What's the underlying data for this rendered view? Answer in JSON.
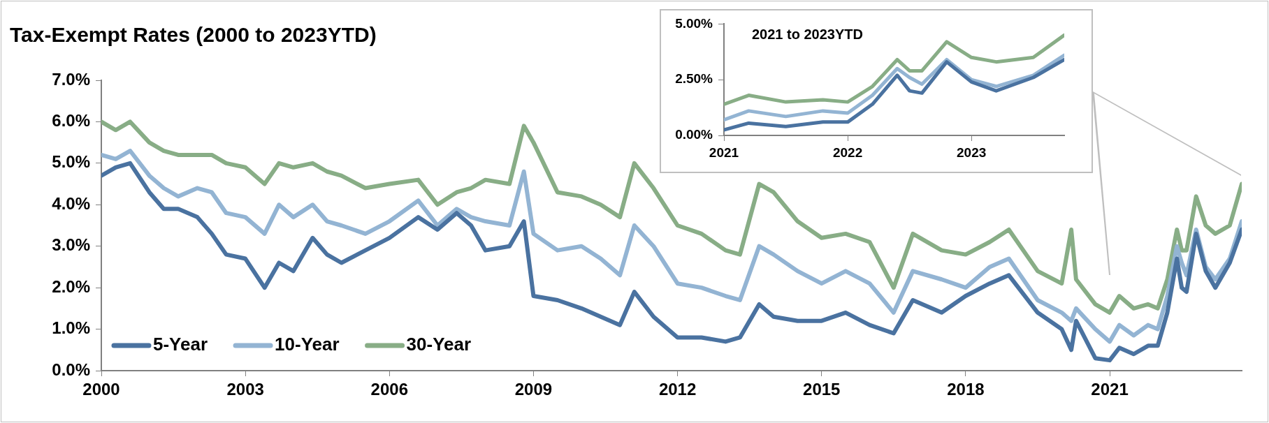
{
  "chart_data": [
    {
      "type": "line",
      "title": "Tax-Exempt Rates (2000 to 2023YTD)",
      "x": [
        2000,
        2000.3,
        2000.6,
        2001,
        2001.3,
        2001.6,
        2002,
        2002.3,
        2002.6,
        2003,
        2003.4,
        2003.7,
        2004,
        2004.4,
        2004.7,
        2005,
        2005.5,
        2006,
        2006.6,
        2007,
        2007.4,
        2007.7,
        2008,
        2008.5,
        2008.8,
        2009,
        2009.5,
        2010,
        2010.4,
        2010.8,
        2011.1,
        2011.5,
        2012,
        2012.5,
        2013,
        2013.3,
        2013.7,
        2014,
        2014.5,
        2015,
        2015.5,
        2016,
        2016.5,
        2016.9,
        2017.5,
        2018,
        2018.5,
        2018.9,
        2019.5,
        2020,
        2020.2,
        2020.3,
        2020.7,
        2021,
        2021.2,
        2021.5,
        2021.8,
        2022,
        2022.2,
        2022.4,
        2022.5,
        2022.6,
        2022.8,
        2023,
        2023.2,
        2023.5,
        2023.75
      ],
      "series": [
        {
          "name": "5-Year",
          "color": "#4a72a0",
          "values": [
            4.7,
            4.9,
            5.0,
            4.3,
            3.9,
            3.9,
            3.7,
            3.3,
            2.8,
            2.7,
            2.0,
            2.6,
            2.4,
            3.2,
            2.8,
            2.6,
            2.9,
            3.2,
            3.7,
            3.4,
            3.8,
            3.5,
            2.9,
            3.0,
            3.6,
            1.8,
            1.7,
            1.5,
            1.3,
            1.1,
            1.9,
            1.3,
            0.8,
            0.8,
            0.7,
            0.8,
            1.6,
            1.3,
            1.2,
            1.2,
            1.4,
            1.1,
            0.9,
            1.7,
            1.4,
            1.8,
            2.1,
            2.3,
            1.4,
            1.0,
            0.5,
            1.2,
            0.3,
            0.25,
            0.55,
            0.4,
            0.6,
            0.6,
            1.4,
            2.7,
            2.0,
            1.9,
            3.3,
            2.4,
            2.0,
            2.6,
            3.4
          ]
        },
        {
          "name": "10-Year",
          "color": "#93b4d3",
          "values": [
            5.2,
            5.1,
            5.3,
            4.7,
            4.4,
            4.2,
            4.4,
            4.3,
            3.8,
            3.7,
            3.3,
            4.0,
            3.7,
            4.0,
            3.6,
            3.5,
            3.3,
            3.6,
            4.1,
            3.5,
            3.9,
            3.7,
            3.6,
            3.5,
            4.8,
            3.3,
            2.9,
            3.0,
            2.7,
            2.3,
            3.5,
            3.0,
            2.1,
            2.0,
            1.8,
            1.7,
            3.0,
            2.8,
            2.4,
            2.1,
            2.4,
            2.1,
            1.4,
            2.4,
            2.2,
            2.0,
            2.5,
            2.7,
            1.7,
            1.4,
            1.2,
            1.5,
            1.0,
            0.7,
            1.1,
            0.85,
            1.1,
            1.0,
            1.8,
            3.0,
            2.6,
            2.3,
            3.4,
            2.5,
            2.2,
            2.7,
            3.6
          ]
        },
        {
          "name": "30-Year",
          "color": "#88ad86",
          "values": [
            6.0,
            5.8,
            6.0,
            5.5,
            5.3,
            5.2,
            5.2,
            5.2,
            5.0,
            4.9,
            4.5,
            5.0,
            4.9,
            5.0,
            4.8,
            4.7,
            4.4,
            4.5,
            4.6,
            4.0,
            4.3,
            4.4,
            4.6,
            4.5,
            5.9,
            5.5,
            4.3,
            4.2,
            4.0,
            3.7,
            5.0,
            4.4,
            3.5,
            3.3,
            2.9,
            2.8,
            4.5,
            4.3,
            3.6,
            3.2,
            3.3,
            3.1,
            2.0,
            3.3,
            2.9,
            2.8,
            3.1,
            3.4,
            2.4,
            2.1,
            3.4,
            2.2,
            1.6,
            1.4,
            1.8,
            1.5,
            1.6,
            1.5,
            2.2,
            3.4,
            2.9,
            2.9,
            4.2,
            3.5,
            3.3,
            3.5,
            4.5
          ]
        }
      ],
      "xlim": [
        2000,
        2023.75
      ],
      "xticks": [
        2000,
        2003,
        2006,
        2009,
        2012,
        2015,
        2018,
        2021
      ],
      "ylim": [
        0,
        7
      ],
      "yticks": [
        {
          "value": 0,
          "label": "0.0%"
        },
        {
          "value": 1,
          "label": "1.0%"
        },
        {
          "value": 2,
          "label": "2.0%"
        },
        {
          "value": 3,
          "label": "3.0%"
        },
        {
          "value": 4,
          "label": "4.0%"
        },
        {
          "value": 5,
          "label": "5.0%"
        },
        {
          "value": 6,
          "label": "6.0%"
        },
        {
          "value": 7,
          "label": "7.0%"
        }
      ],
      "legend": "bottom left",
      "marker": "none",
      "line_style": "solid"
    },
    {
      "type": "line",
      "title": "2021 to 2023YTD",
      "x": [
        2021,
        2021.2,
        2021.5,
        2021.8,
        2022,
        2022.2,
        2022.4,
        2022.5,
        2022.6,
        2022.8,
        2023,
        2023.2,
        2023.5,
        2023.75
      ],
      "series": [
        {
          "color": "#4a72a0",
          "values": [
            0.25,
            0.55,
            0.4,
            0.6,
            0.6,
            1.4,
            2.7,
            2.0,
            1.9,
            3.3,
            2.4,
            2.0,
            2.6,
            3.4
          ]
        },
        {
          "color": "#93b4d3",
          "values": [
            0.7,
            1.1,
            0.85,
            1.1,
            1.0,
            1.8,
            3.0,
            2.6,
            2.3,
            3.4,
            2.5,
            2.2,
            2.7,
            3.6
          ]
        },
        {
          "color": "#88ad86",
          "values": [
            1.4,
            1.8,
            1.5,
            1.6,
            1.5,
            2.2,
            3.4,
            2.9,
            2.9,
            4.2,
            3.5,
            3.3,
            3.5,
            4.5
          ]
        }
      ],
      "xlim": [
        2021,
        2023.75
      ],
      "xticks": [
        2021,
        2022,
        2023
      ],
      "ylim": [
        0,
        5
      ],
      "yticks": [
        {
          "value": 0,
          "label": "0.00%"
        },
        {
          "value": 2.5,
          "label": "2.50%"
        },
        {
          "value": 5,
          "label": "5.00%"
        }
      ],
      "marker": "none",
      "line_style": "solid"
    }
  ]
}
